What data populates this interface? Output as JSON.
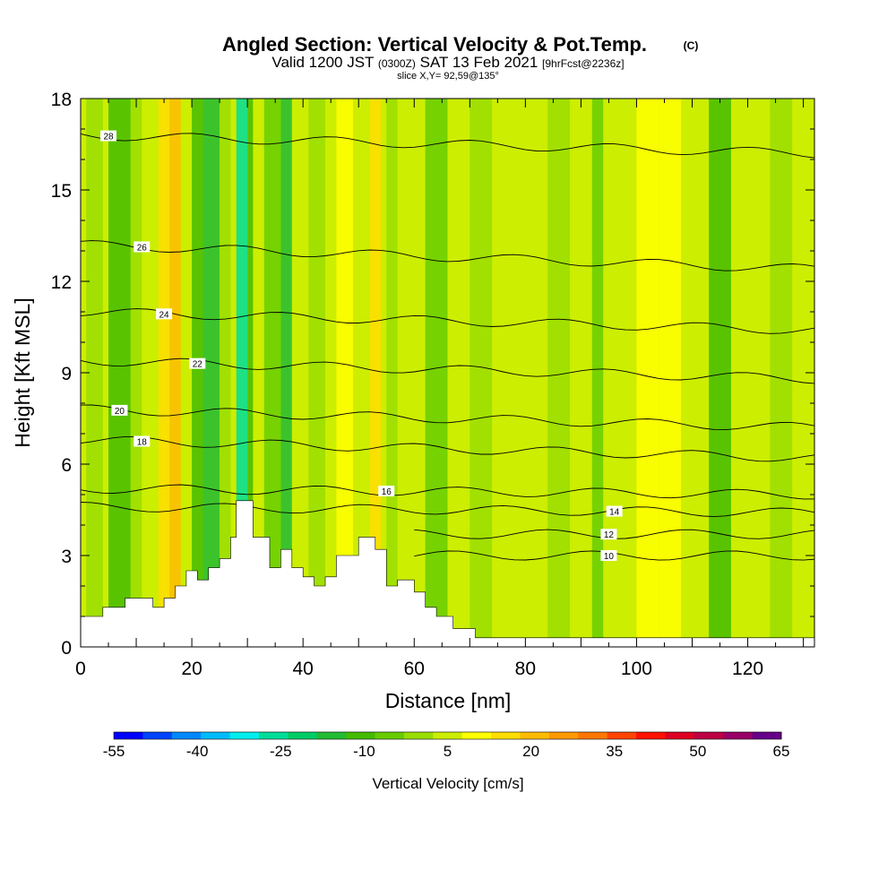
{
  "chart_data": {
    "type": "heatmap",
    "title": "Angled Section: Vertical Velocity & Pot.Temp.",
    "title_units": "(C)",
    "subtitle": {
      "p1": "Valid 1200 JST",
      "p2": "(0300Z)",
      "p3": "SAT 13 Feb 2021",
      "p4": "[9hrFcst@2236z]"
    },
    "slice_info": "slice X,Y= 92,59@135°",
    "xlabel": "Distance [nm]",
    "ylabel": "Height [Kft MSL]",
    "xlim": [
      0,
      132
    ],
    "ylim": [
      0,
      18
    ],
    "x_ticks": [
      "0",
      "20",
      "40",
      "60",
      "80",
      "100",
      "120"
    ],
    "y_ticks": [
      "0",
      "3",
      "6",
      "9",
      "12",
      "15",
      "18"
    ],
    "colorbar": {
      "title": "Vertical Velocity [cm/s]",
      "min": -55,
      "max": 65,
      "step": 5,
      "tick_labels": [
        "-55",
        "-40",
        "-25",
        "-10",
        "5",
        "20",
        "35",
        "50",
        "65"
      ],
      "colors": [
        "#0000ff",
        "#0044ff",
        "#0088ff",
        "#00bbff",
        "#00eeee",
        "#00dd99",
        "#00cc66",
        "#22bb33",
        "#44bb00",
        "#66cc00",
        "#99dd00",
        "#ccee00",
        "#ffff00",
        "#ffdd00",
        "#ffbb00",
        "#ff9900",
        "#ff7700",
        "#ff4400",
        "#ff1100",
        "#dd0022",
        "#bb0044",
        "#990066",
        "#660088"
      ]
    },
    "theta_contours": [
      {
        "value": 10,
        "y_left": null,
        "y_right": 3.0,
        "label": "10",
        "label_x": 95
      },
      {
        "value": 12,
        "y_left": null,
        "y_right": 3.7,
        "label": "12",
        "label_x": 95
      },
      {
        "value": 14,
        "y_left": 4.6,
        "y_right": 4.4,
        "label": "14",
        "label_x": 96
      },
      {
        "value": 16,
        "y_left": 5.2,
        "y_right": 5.0,
        "label": "16",
        "label_x": 55
      },
      {
        "value": 18,
        "y_left": 6.8,
        "y_right": 6.2,
        "label": "18",
        "label_x": 11
      },
      {
        "value": 20,
        "y_left": 7.8,
        "y_right": 7.2,
        "label": "20",
        "label_x": 7
      },
      {
        "value": 22,
        "y_left": 9.4,
        "y_right": 8.8,
        "label": "22",
        "label_x": 21
      },
      {
        "value": 24,
        "y_left": 11.0,
        "y_right": 10.4,
        "label": "24",
        "label_x": 15
      },
      {
        "value": 26,
        "y_left": 13.2,
        "y_right": 12.4,
        "label": "26",
        "label_x": 11
      },
      {
        "value": 28,
        "y_left": 16.8,
        "y_right": 16.2,
        "label": "28",
        "label_x": 5
      }
    ],
    "terrain_kft": [
      [
        0,
        1.0
      ],
      [
        4,
        1.0
      ],
      [
        4,
        1.3
      ],
      [
        8,
        1.3
      ],
      [
        8,
        1.6
      ],
      [
        13,
        1.6
      ],
      [
        13,
        1.3
      ],
      [
        15,
        1.3
      ],
      [
        15,
        1.6
      ],
      [
        17,
        1.6
      ],
      [
        17,
        2.0
      ],
      [
        19,
        2.0
      ],
      [
        19,
        2.5
      ],
      [
        21,
        2.5
      ],
      [
        21,
        2.2
      ],
      [
        23,
        2.2
      ],
      [
        23,
        2.6
      ],
      [
        25,
        2.6
      ],
      [
        25,
        2.9
      ],
      [
        27,
        2.9
      ],
      [
        27,
        3.6
      ],
      [
        28,
        3.6
      ],
      [
        28,
        4.8
      ],
      [
        31,
        4.8
      ],
      [
        31,
        3.6
      ],
      [
        34,
        3.6
      ],
      [
        34,
        2.6
      ],
      [
        36,
        2.6
      ],
      [
        36,
        3.2
      ],
      [
        38,
        3.2
      ],
      [
        38,
        2.6
      ],
      [
        40,
        2.6
      ],
      [
        40,
        2.3
      ],
      [
        42,
        2.3
      ],
      [
        42,
        2.0
      ],
      [
        44,
        2.0
      ],
      [
        44,
        2.3
      ],
      [
        46,
        2.3
      ],
      [
        46,
        3.0
      ],
      [
        50,
        3.0
      ],
      [
        50,
        3.6
      ],
      [
        53,
        3.6
      ],
      [
        53,
        3.2
      ],
      [
        55,
        3.2
      ],
      [
        55,
        2.0
      ],
      [
        57,
        2.0
      ],
      [
        57,
        2.2
      ],
      [
        60,
        2.2
      ],
      [
        60,
        1.8
      ],
      [
        62,
        1.8
      ],
      [
        62,
        1.3
      ],
      [
        64,
        1.3
      ],
      [
        64,
        1.0
      ],
      [
        67,
        1.0
      ],
      [
        67,
        0.6
      ],
      [
        71,
        0.6
      ],
      [
        71,
        0.3
      ],
      [
        132,
        0.3
      ],
      [
        132,
        0
      ]
    ]
  }
}
